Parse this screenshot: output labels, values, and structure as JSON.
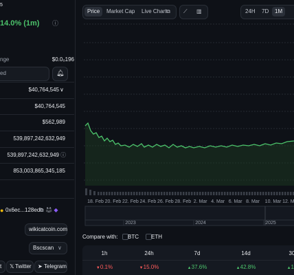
{
  "header": {
    "price_fragment": "5",
    "change": "14.0% (1m)"
  },
  "range": {
    "label": "nge",
    "value": "$0.0₀196"
  },
  "search_placeholder": "ed",
  "stats": [
    "$40,764,545",
    "$40,764,545",
    "$562,989",
    "539,897,242,632,949",
    "539,897,242,632,949",
    "853,003,865,345,185"
  ],
  "contract": "0x6ec...128edb",
  "website": "wikicatcoin.com",
  "explorer": "Bscscan",
  "socials": [
    "t",
    "Twitter",
    "Telegram"
  ],
  "tabs": [
    "Price",
    "Market Cap",
    "Live Chart"
  ],
  "ranges": [
    "24H",
    "7D",
    "1M"
  ],
  "selected_range": "1M",
  "x_labels": [
    "18. Feb",
    "20. Feb",
    "22. Feb",
    "24. Feb",
    "26. Feb",
    "28. Feb",
    "2. Mar",
    "4. Mar",
    "6. Mar",
    "8. Mar",
    "10. Mar",
    "12. Mar"
  ],
  "navigator_years": [
    "2023",
    "2024",
    "2025"
  ],
  "compare": {
    "label": "Compare with:",
    "options": [
      "BTC",
      "ETH"
    ]
  },
  "performance": {
    "headers": [
      "1h",
      "24h",
      "7d",
      "14d",
      "30"
    ],
    "values": [
      "0.1%",
      "15.0%",
      "37.6%",
      "42.8%",
      "16"
    ],
    "directions": [
      "down",
      "down",
      "up",
      "up",
      "up"
    ]
  }
}
